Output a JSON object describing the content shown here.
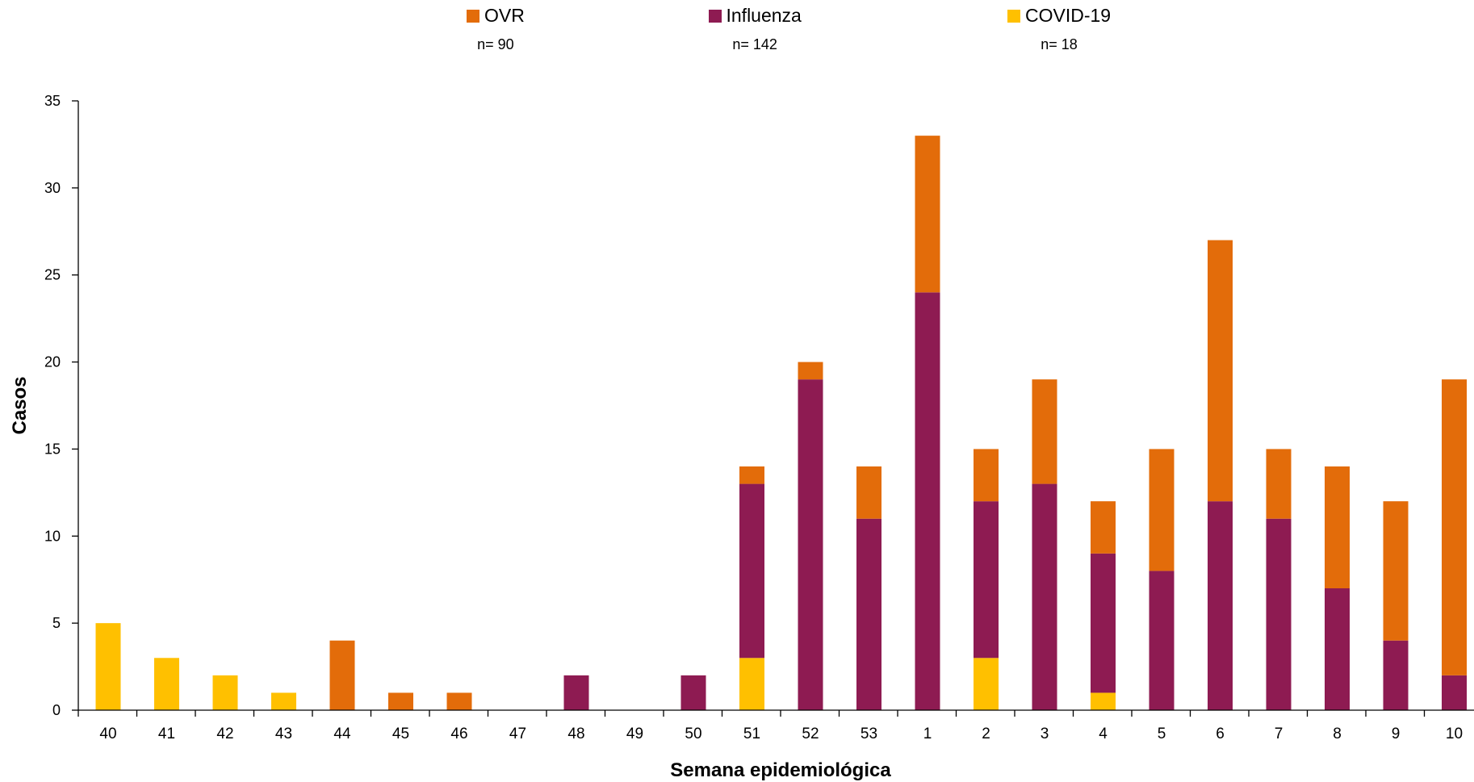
{
  "legend": {
    "items": [
      {
        "label": "OVR",
        "n": "n= 90",
        "color": "#E36C0A"
      },
      {
        "label": "Influenza",
        "n": "n= 142",
        "color": "#8E1B52"
      },
      {
        "label": "COVID-19",
        "n": "n= 18",
        "color": "#FFC000"
      }
    ]
  },
  "chart_data": {
    "type": "bar",
    "stacked": true,
    "xlabel": "Semana epidemiológica",
    "ylabel": "Casos",
    "ylim": [
      0,
      35
    ],
    "yticks": [
      0,
      5,
      10,
      15,
      20,
      25,
      30,
      35
    ],
    "grid": false,
    "legend_position": "top",
    "categories": [
      "40",
      "41",
      "42",
      "43",
      "44",
      "45",
      "46",
      "47",
      "48",
      "49",
      "50",
      "51",
      "52",
      "53",
      "1",
      "2",
      "3",
      "4",
      "5",
      "6",
      "7",
      "8",
      "9",
      "10"
    ],
    "series": [
      {
        "name": "COVID-19",
        "color": "#FFC000",
        "values": [
          5,
          3,
          2,
          1,
          0,
          0,
          0,
          0,
          0,
          0,
          0,
          3,
          0,
          0,
          0,
          3,
          0,
          1,
          0,
          0,
          0,
          0,
          0,
          0
        ]
      },
      {
        "name": "Influenza",
        "color": "#8E1B52",
        "values": [
          0,
          0,
          0,
          0,
          0,
          0,
          0,
          0,
          2,
          0,
          2,
          10,
          19,
          11,
          24,
          9,
          13,
          8,
          8,
          12,
          11,
          7,
          4,
          2
        ]
      },
      {
        "name": "OVR",
        "color": "#E36C0A",
        "values": [
          0,
          0,
          0,
          0,
          4,
          1,
          1,
          0,
          0,
          0,
          0,
          1,
          1,
          3,
          9,
          3,
          6,
          3,
          7,
          15,
          4,
          7,
          8,
          17
        ]
      }
    ]
  }
}
